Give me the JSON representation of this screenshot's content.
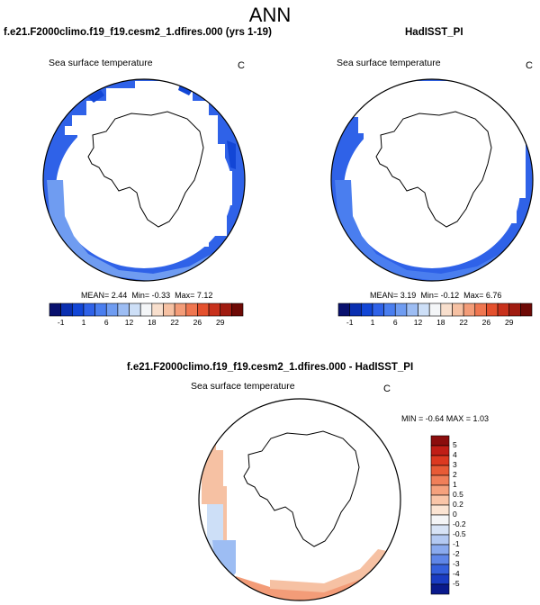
{
  "main_title": "ANN",
  "panels": [
    {
      "title": "f.e21.F2000climo.f19_f19.cesm2_1.dfires.000 (yrs 1-19)",
      "subtitle": "Sea surface temperature",
      "unit": "C",
      "stats": {
        "mean_label": "MEAN=",
        "mean": "2.44",
        "min_label": "Min=",
        "min": "-0.33",
        "max_label": "Max=",
        "max": "7.12"
      }
    },
    {
      "title": "HadISST_PI",
      "subtitle": "Sea surface temperature",
      "unit": "C",
      "stats": {
        "mean_label": "MEAN=",
        "mean": "3.19",
        "min_label": "Min=",
        "min": "-0.12",
        "max_label": "Max=",
        "max": "6.76"
      }
    },
    {
      "title": "f.e21.F2000climo.f19_f19.cesm2_1.dfires.000 - HadISST_PI",
      "subtitle": "Sea surface temperature",
      "unit": "C",
      "stats_line": "MIN = -0.64 MAX = 1.03"
    }
  ],
  "chart_data": [
    {
      "type": "heatmap",
      "projection": "south-polar-stereographic",
      "variable": "Sea surface temperature",
      "units": "C",
      "mean": 2.44,
      "min": -0.33,
      "max": 7.12,
      "colorbar": {
        "orientation": "horizontal",
        "tick_labels": [
          "-1",
          "1",
          "6",
          "12",
          "18",
          "22",
          "26",
          "29"
        ],
        "colors": [
          "#08106e",
          "#0a2fb0",
          "#1246d6",
          "#2f62e8",
          "#4a7eef",
          "#6f9cf1",
          "#9dbdf3",
          "#cddff7",
          "#f4f6f8",
          "#f8dfcd",
          "#f6c1a3",
          "#f39c78",
          "#ef7650",
          "#e4502d",
          "#c8311c",
          "#a01b10",
          "#6e0a06"
        ]
      }
    },
    {
      "type": "heatmap",
      "projection": "south-polar-stereographic",
      "variable": "Sea surface temperature",
      "units": "C",
      "mean": 3.19,
      "min": -0.12,
      "max": 6.76,
      "colorbar": {
        "orientation": "horizontal",
        "tick_labels": [
          "-1",
          "1",
          "6",
          "12",
          "18",
          "22",
          "26",
          "29"
        ],
        "colors": [
          "#08106e",
          "#0a2fb0",
          "#1246d6",
          "#2f62e8",
          "#4a7eef",
          "#6f9cf1",
          "#9dbdf3",
          "#cddff7",
          "#f4f6f8",
          "#f8dfcd",
          "#f6c1a3",
          "#f39c78",
          "#ef7650",
          "#e4502d",
          "#c8311c",
          "#a01b10",
          "#6e0a06"
        ]
      }
    },
    {
      "type": "heatmap",
      "projection": "south-polar-stereographic",
      "variable": "Sea surface temperature",
      "units": "C",
      "min": -0.64,
      "max": 1.03,
      "colorbar": {
        "orientation": "vertical",
        "tick_labels": [
          "5",
          "4",
          "3",
          "2",
          "1",
          "0.5",
          "0.2",
          "0",
          "-0.2",
          "-0.5",
          "-1",
          "-2",
          "-3",
          "-4",
          "-5"
        ],
        "colors": [
          "#8b0d0d",
          "#c01e16",
          "#dc3920",
          "#e85b36",
          "#f07f59",
          "#f5a17d",
          "#f9c5a8",
          "#fbe4d3",
          "#f4f5f7",
          "#d7e3f6",
          "#b3c9f2",
          "#8aaaee",
          "#5f86e8",
          "#3560dc",
          "#1a3cc2",
          "#0a1a8c"
        ]
      }
    }
  ]
}
